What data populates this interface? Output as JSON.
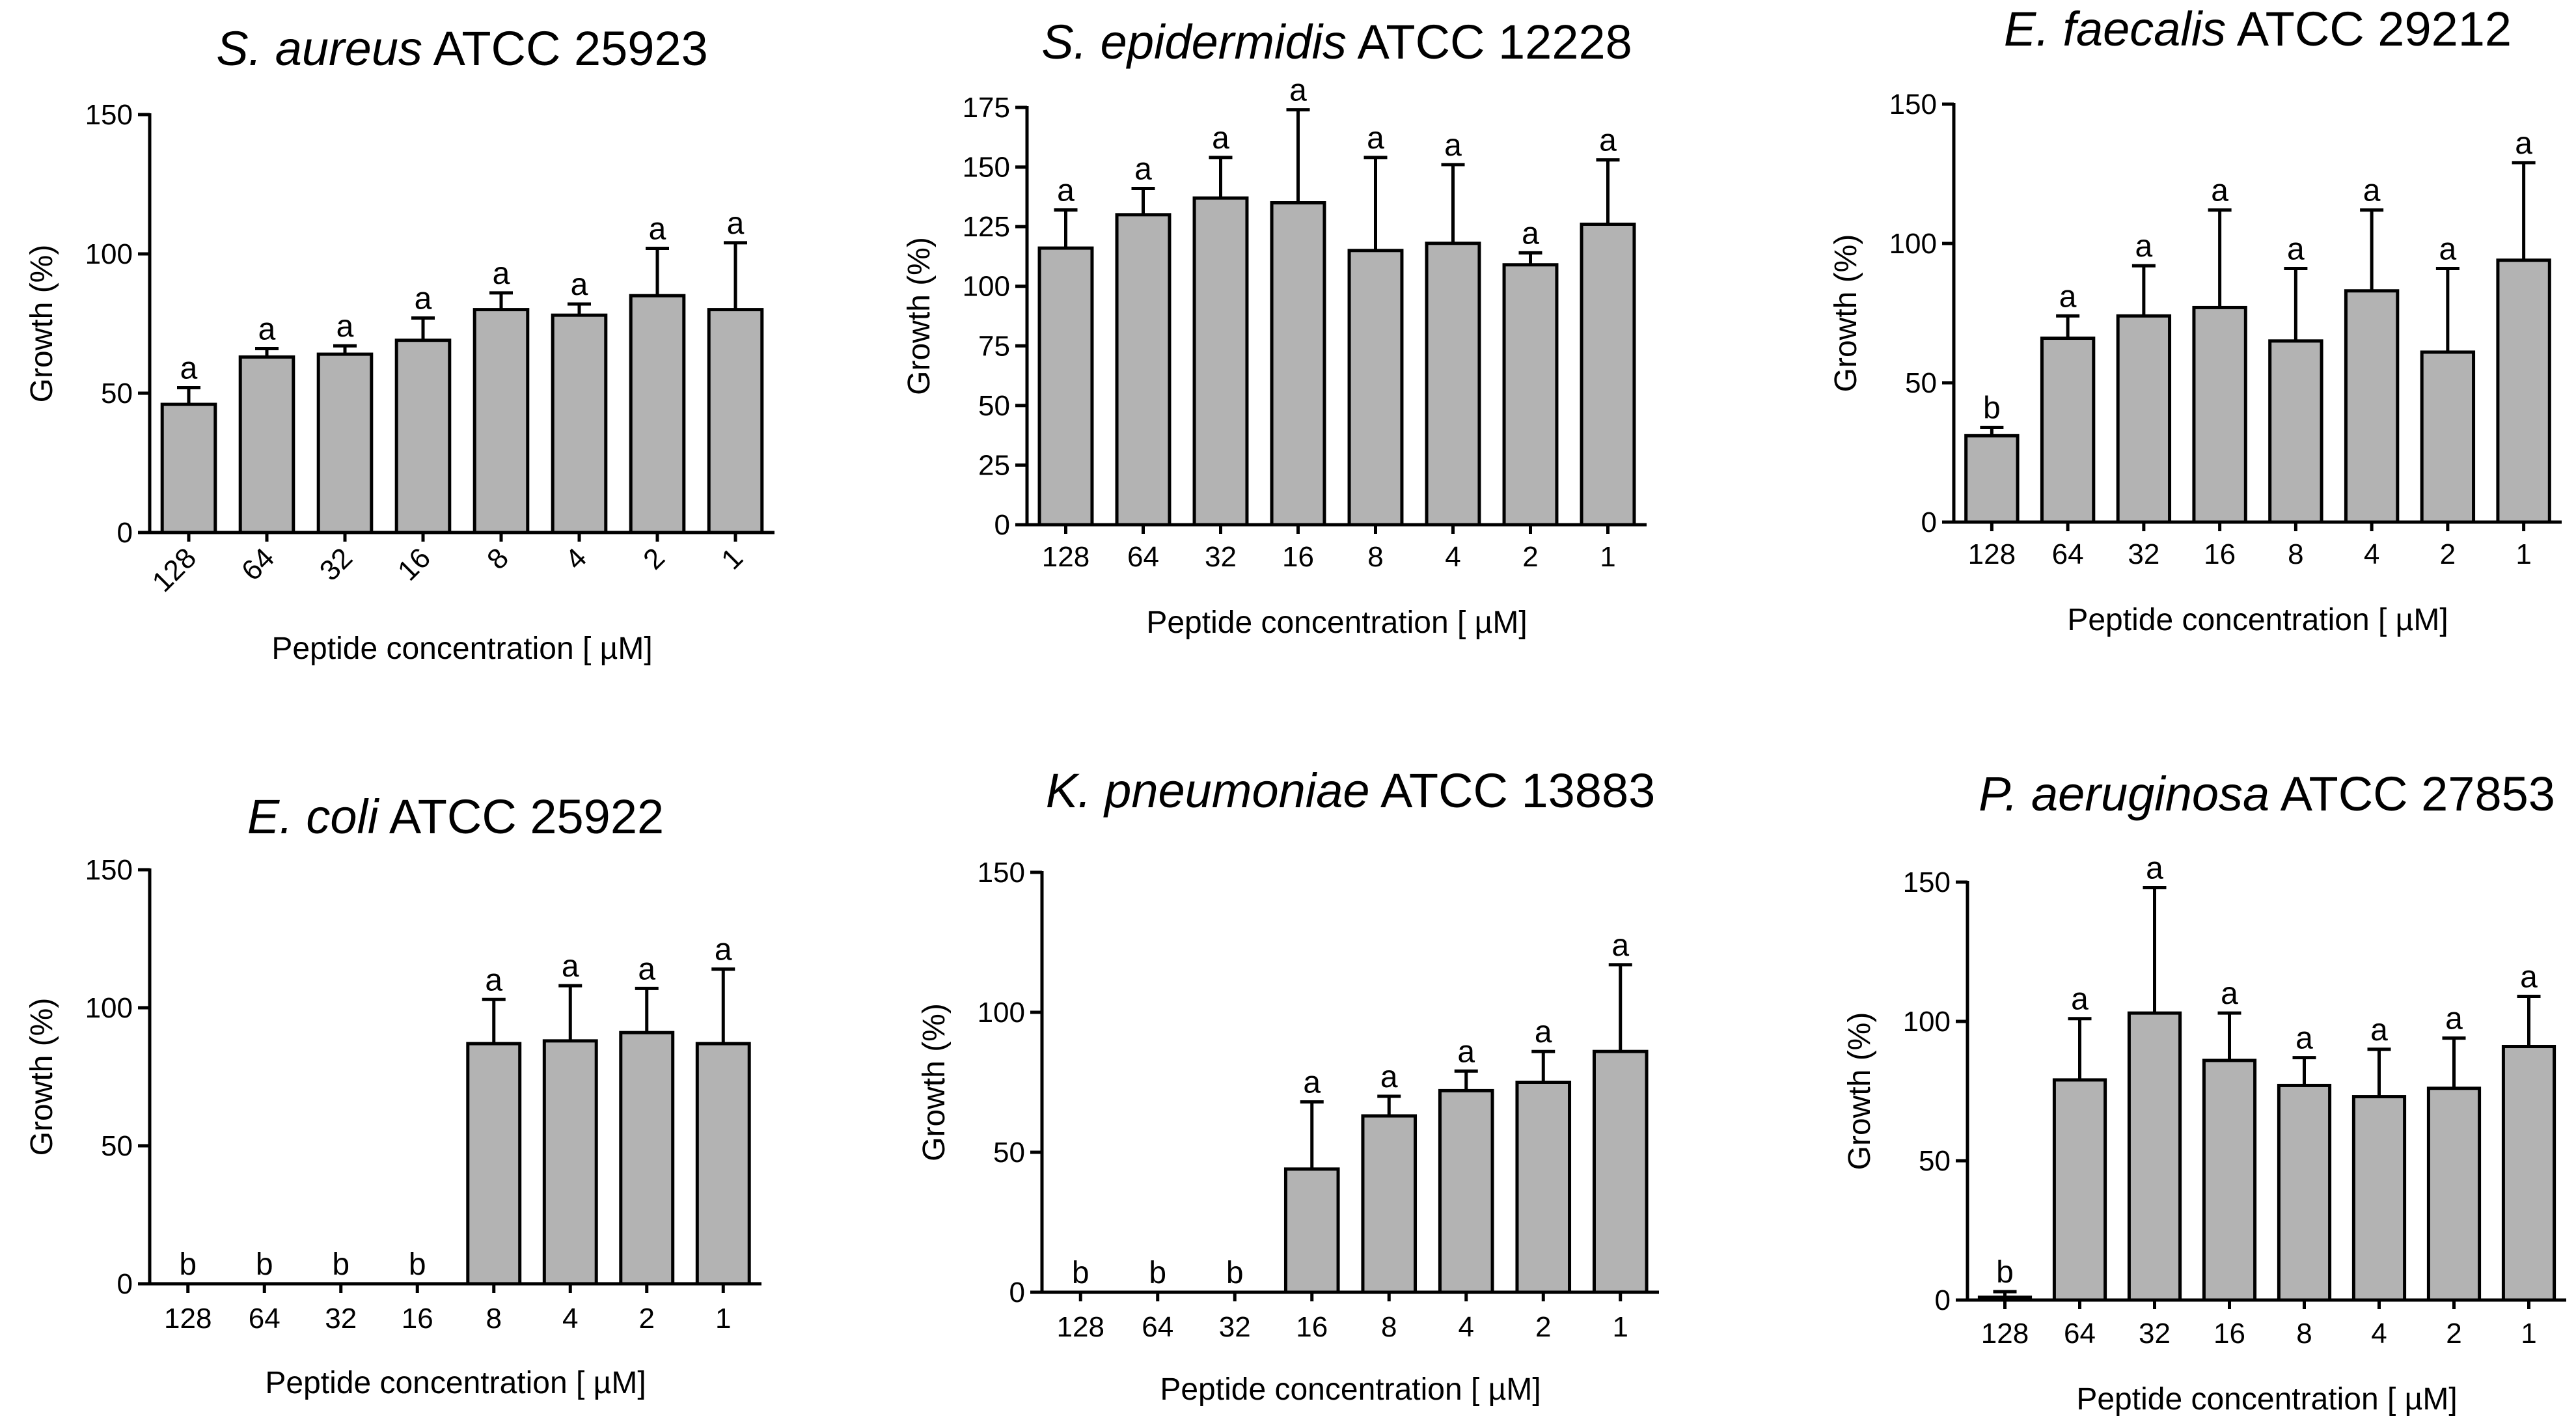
{
  "chart_data": [
    {
      "type": "bar",
      "title_species": "S. aureus",
      "title_strain": "ATCC 25923",
      "xlabel": "Peptide concentration [ µM]",
      "ylabel": "Growth (%)",
      "ylim": [
        0,
        150
      ],
      "yticks": [
        "0",
        "50",
        "100",
        "150"
      ],
      "categories": [
        "128",
        "64",
        "32",
        "16",
        "8",
        "4",
        "2",
        "1"
      ],
      "values": [
        46,
        63,
        64,
        69,
        80,
        78,
        85,
        80
      ],
      "errors": [
        6,
        3,
        3,
        8,
        6,
        4,
        17,
        24
      ],
      "letters": [
        "a",
        "a",
        "a",
        "a",
        "a",
        "a",
        "a",
        "a"
      ],
      "rotated_ticks": true
    },
    {
      "type": "bar",
      "title_species": "S. epidermidis",
      "title_strain": "ATCC 12228",
      "xlabel": "Peptide concentration [ µM]",
      "ylabel": "Growth (%)",
      "ylim": [
        0,
        175
      ],
      "yticks": [
        "0",
        "25",
        "50",
        "75",
        "100",
        "125",
        "150",
        "175"
      ],
      "categories": [
        "128",
        "64",
        "32",
        "16",
        "8",
        "4",
        "2",
        "1"
      ],
      "values": [
        116,
        130,
        137,
        135,
        115,
        118,
        109,
        126
      ],
      "errors": [
        16,
        11,
        17,
        39,
        39,
        33,
        5,
        27
      ],
      "letters": [
        "a",
        "a",
        "a",
        "a",
        "a",
        "a",
        "a",
        "a"
      ],
      "rotated_ticks": false
    },
    {
      "type": "bar",
      "title_species": "E. faecalis",
      "title_strain": "ATCC 29212",
      "xlabel": "Peptide concentration [ µM]",
      "ylabel": "Growth (%)",
      "ylim": [
        0,
        150
      ],
      "yticks": [
        "0",
        "50",
        "100",
        "150"
      ],
      "categories": [
        "128",
        "64",
        "32",
        "16",
        "8",
        "4",
        "2",
        "1"
      ],
      "values": [
        31,
        66,
        74,
        77,
        65,
        83,
        61,
        94
      ],
      "errors": [
        3,
        8,
        18,
        35,
        26,
        29,
        30,
        35
      ],
      "letters": [
        "b",
        "a",
        "a",
        "a",
        "a",
        "a",
        "a",
        "a"
      ],
      "rotated_ticks": false
    },
    {
      "type": "bar",
      "title_species": "E. coli",
      "title_strain": "ATCC 25922",
      "xlabel": "Peptide concentration [ µM]",
      "ylabel": "Growth (%)",
      "ylim": [
        0,
        150
      ],
      "yticks": [
        "0",
        "50",
        "100",
        "150"
      ],
      "categories": [
        "128",
        "64",
        "32",
        "16",
        "8",
        "4",
        "2",
        "1"
      ],
      "values": [
        0,
        0,
        0,
        0,
        87,
        88,
        91,
        87
      ],
      "errors": [
        0,
        0,
        0,
        0,
        16,
        20,
        16,
        27
      ],
      "letters": [
        "b",
        "b",
        "b",
        "b",
        "a",
        "a",
        "a",
        "a"
      ],
      "rotated_ticks": false
    },
    {
      "type": "bar",
      "title_species": "K. pneumoniae",
      "title_strain": "ATCC 13883",
      "xlabel": "Peptide concentration [ µM]",
      "ylabel": "Growth (%)",
      "ylim": [
        0,
        150
      ],
      "yticks": [
        "0",
        "50",
        "100",
        "150"
      ],
      "categories": [
        "128",
        "64",
        "32",
        "16",
        "8",
        "4",
        "2",
        "1"
      ],
      "values": [
        0,
        0,
        0,
        44,
        63,
        72,
        75,
        86
      ],
      "errors": [
        0,
        0,
        0,
        24,
        7,
        7,
        11,
        31
      ],
      "letters": [
        "b",
        "b",
        "b",
        "a",
        "a",
        "a",
        "a",
        "a"
      ],
      "rotated_ticks": false
    },
    {
      "type": "bar",
      "title_species": "P. aeruginosa",
      "title_strain": "ATCC 27853",
      "xlabel": "Peptide concentration [ µM]",
      "ylabel": "Growth (%)",
      "ylim": [
        0,
        150
      ],
      "yticks": [
        "0",
        "50",
        "100",
        "150"
      ],
      "categories": [
        "128",
        "64",
        "32",
        "16",
        "8",
        "4",
        "2",
        "1"
      ],
      "values": [
        1,
        79,
        103,
        86,
        77,
        73,
        76,
        91
      ],
      "errors": [
        2,
        22,
        45,
        17,
        10,
        17,
        18,
        18
      ],
      "letters": [
        "b",
        "a",
        "a",
        "a",
        "a",
        "a",
        "a",
        "a"
      ],
      "rotated_ticks": false
    }
  ]
}
